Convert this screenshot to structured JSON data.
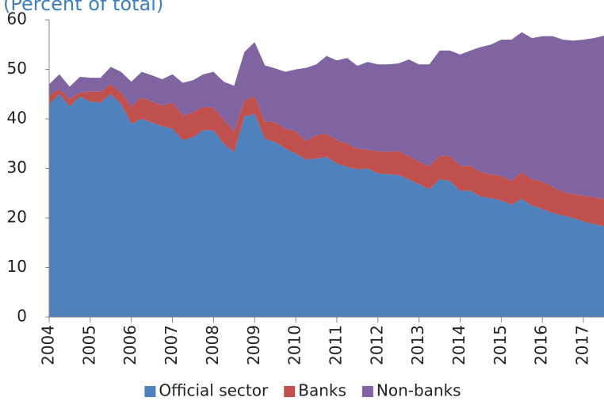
{
  "chart_data": {
    "type": "stacked_area",
    "subtitle": "(Percent of total)",
    "x": [
      2004,
      2004.25,
      2004.5,
      2004.75,
      2005,
      2005.25,
      2005.5,
      2005.75,
      2006,
      2006.25,
      2006.5,
      2006.75,
      2007,
      2007.25,
      2007.5,
      2007.75,
      2008,
      2008.25,
      2008.5,
      2008.75,
      2009,
      2009.25,
      2009.5,
      2009.75,
      2010,
      2010.25,
      2010.5,
      2010.75,
      2011,
      2011.25,
      2011.5,
      2011.75,
      2012,
      2012.25,
      2012.5,
      2012.75,
      2013,
      2013.25,
      2013.5,
      2013.75,
      2014,
      2014.25,
      2014.5,
      2014.75,
      2015,
      2015.25,
      2015.5,
      2015.75,
      2016,
      2016.25,
      2016.5,
      2016.75,
      2017,
      2017.25,
      2017.5
    ],
    "series": [
      {
        "name": "Official sector",
        "color": "#4f81bd",
        "values": [
          43,
          45,
          42.5,
          44.5,
          43.5,
          43.3,
          45,
          43,
          39,
          40,
          39.3,
          38.5,
          38,
          35.7,
          36.3,
          37.7,
          37.7,
          35,
          33.3,
          40.5,
          41,
          36,
          35.3,
          34,
          33,
          31.8,
          32,
          32.3,
          31,
          30.3,
          29.8,
          30,
          29,
          28.8,
          28.7,
          27.8,
          26.8,
          25.8,
          27.8,
          27.5,
          25.5,
          25.5,
          24.3,
          24,
          23.5,
          22.7,
          23.8,
          22.5,
          21.8,
          21,
          20.5,
          20,
          19.3,
          18.8,
          18.3
        ]
      },
      {
        "name": "Banks",
        "color": "#c0504d",
        "values": [
          1.7,
          1.0,
          1.5,
          0.8,
          2.0,
          2.2,
          2.0,
          2.3,
          3.5,
          4.3,
          4.2,
          4.2,
          5.3,
          5.0,
          5.0,
          4.8,
          4.6,
          4.8,
          4.2,
          3.3,
          3.5,
          3.5,
          4.0,
          4.0,
          4.5,
          3.7,
          4.7,
          4.7,
          4.7,
          4.7,
          4.2,
          3.8,
          4.5,
          4.5,
          4.8,
          4.7,
          4.5,
          4.7,
          4.7,
          5.0,
          5.0,
          5.0,
          5.0,
          4.8,
          5.0,
          4.8,
          5.4,
          5.3,
          5.5,
          5.3,
          4.8,
          4.8,
          5.2,
          5.4,
          5.5
        ]
      },
      {
        "name": "Non-banks",
        "color": "#8064a2",
        "values": [
          2.3,
          3.0,
          2.5,
          3.2,
          2.8,
          2.8,
          3.5,
          4.2,
          5.0,
          5.2,
          5.3,
          5.3,
          5.7,
          6.6,
          6.5,
          6.5,
          7.2,
          7.7,
          9.2,
          9.7,
          11.0,
          11.3,
          10.9,
          11.5,
          12.5,
          14.8,
          14.3,
          15.7,
          16.1,
          17.3,
          16.7,
          17.7,
          17.5,
          17.7,
          17.7,
          19.5,
          19.7,
          20.5,
          21.3,
          21.3,
          22.5,
          23.3,
          25.2,
          26.2,
          27.5,
          28.5,
          28.3,
          28.5,
          29.4,
          30.4,
          30.7,
          31.0,
          31.5,
          32.1,
          33.0
        ]
      }
    ],
    "xlim": [
      2004,
      2017.5
    ],
    "xticks": [
      2004,
      2005,
      2006,
      2007,
      2008,
      2009,
      2010,
      2011,
      2012,
      2013,
      2014,
      2015,
      2016,
      2017
    ],
    "ylim": [
      0,
      60
    ],
    "yticks": [
      0,
      10,
      20,
      30,
      40,
      50,
      60
    ],
    "legend": "bottom"
  }
}
